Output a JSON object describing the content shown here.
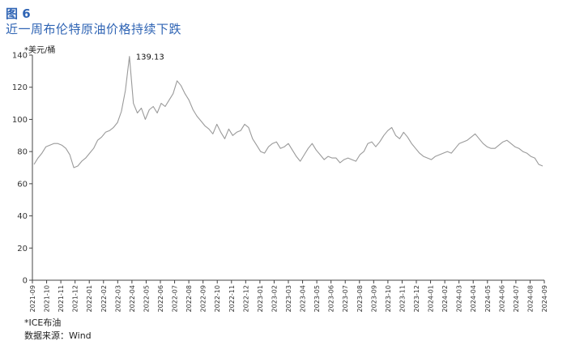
{
  "figure": {
    "number": "图 6",
    "title": "近一周布伦特原油价格持续下跌",
    "unit": "*美元/桶",
    "note": "*ICE布油",
    "source": "数据来源：Wind"
  },
  "chart_data": {
    "type": "line",
    "title": "近一周布伦特原油价格持续下跌",
    "xlabel": "",
    "ylabel": "*美元/桶",
    "ylim": [
      0,
      140
    ],
    "yticks": [
      0,
      20,
      40,
      60,
      80,
      100,
      120,
      140
    ],
    "grid": false,
    "legend": "none",
    "line_color": "#9a9a9a",
    "xticks": [
      "2021-09",
      "2021-10",
      "2021-11",
      "2021-12",
      "2022-01",
      "2022-02",
      "2022-03",
      "2022-04",
      "2022-05",
      "2022-06",
      "2022-07",
      "2022-08",
      "2022-09",
      "2022-10",
      "2022-11",
      "2022-12",
      "2023-01",
      "2023-02",
      "2023-03",
      "2023-04",
      "2023-05",
      "2023-06",
      "2023-07",
      "2023-08",
      "2023-09",
      "2023-10",
      "2023-11",
      "2023-12",
      "2024-01",
      "2024-02",
      "2024-03",
      "2024-04",
      "2024-05",
      "2024-06",
      "2024-07",
      "2024-08",
      "2024-09"
    ],
    "series": [
      {
        "values": [
          72,
          76,
          79,
          83,
          84,
          85,
          85,
          84,
          82,
          78,
          70,
          71,
          74,
          76,
          79,
          82,
          87,
          89,
          92,
          93,
          95,
          98,
          105,
          118,
          139.13,
          110,
          104,
          107,
          100,
          106,
          108,
          104,
          110,
          108,
          112,
          116,
          124,
          121,
          116,
          112,
          106,
          102,
          99,
          96,
          94,
          91,
          97,
          92,
          88,
          94,
          90,
          92,
          93,
          97,
          95,
          88,
          84,
          80,
          79,
          83,
          85,
          86,
          82,
          83,
          85,
          81,
          77,
          74,
          78,
          82,
          85,
          81,
          78,
          75,
          77,
          76,
          76,
          73,
          75,
          76,
          75,
          74,
          78,
          80,
          85,
          86,
          83,
          86,
          90,
          93,
          95,
          90,
          88,
          92,
          89,
          85,
          82,
          79,
          77,
          76,
          75,
          77,
          78,
          79,
          80,
          79,
          82,
          85,
          86,
          87,
          89,
          91,
          88,
          85,
          83,
          82,
          82,
          84,
          86,
          87,
          85,
          83,
          82,
          80,
          79,
          77,
          76,
          72,
          71
        ]
      }
    ],
    "annotations": [
      {
        "text": "139.13",
        "point_index": 24,
        "value": 139.13
      }
    ]
  }
}
